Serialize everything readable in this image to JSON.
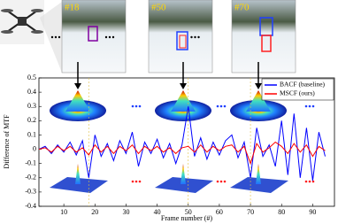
{
  "chart_data": {
    "type": "line",
    "x_label": "Frame number (#)",
    "y_label": "Difference of MTF",
    "frames": [
      {
        "value": 18,
        "label": "#18"
      },
      {
        "value": 50,
        "label": "#50"
      },
      {
        "value": 70,
        "label": "#70"
      }
    ],
    "x": [
      2,
      4,
      6,
      8,
      10,
      12,
      14,
      16,
      18,
      20,
      22,
      24,
      26,
      28,
      30,
      32,
      34,
      36,
      38,
      40,
      42,
      44,
      46,
      48,
      50,
      52,
      54,
      56,
      58,
      60,
      62,
      64,
      66,
      68,
      70,
      72,
      74,
      76,
      78,
      80,
      82,
      84,
      86,
      88,
      90,
      92,
      94
    ],
    "series": [
      {
        "name": "BACF (baseline)",
        "color": "#0000ff",
        "values": [
          0.0,
          0.02,
          -0.03,
          0.03,
          -0.02,
          0.05,
          -0.04,
          0.06,
          -0.2,
          0.1,
          -0.05,
          0.04,
          -0.08,
          0.06,
          -0.03,
          0.12,
          -0.12,
          0.05,
          -0.03,
          0.07,
          -0.06,
          0.04,
          -0.1,
          0.03,
          0.3,
          -0.05,
          0.08,
          -0.07,
          0.05,
          -0.04,
          0.06,
          0.1,
          -0.06,
          0.05,
          -0.2,
          0.15,
          -0.05,
          0.03,
          -0.12,
          0.2,
          -0.18,
          0.25,
          -0.2,
          0.15,
          -0.22,
          0.12,
          -0.05
        ]
      },
      {
        "name": "MSCF (ours)",
        "color": "#ff0000",
        "values": [
          0.0,
          0.01,
          -0.02,
          0.02,
          -0.01,
          0.02,
          -0.02,
          0.01,
          -0.04,
          0.03,
          -0.02,
          0.02,
          -0.03,
          0.02,
          -0.01,
          0.03,
          -0.03,
          0.02,
          -0.01,
          0.02,
          -0.02,
          0.01,
          -0.03,
          0.01,
          0.02,
          -0.02,
          0.03,
          -0.02,
          0.02,
          -0.01,
          0.02,
          0.03,
          -0.02,
          0.02,
          -0.1,
          0.04,
          -0.02,
          0.01,
          0.05,
          0.02,
          -0.03,
          0.04,
          -0.02,
          0.03,
          -0.05,
          0.02,
          -0.01
        ]
      }
    ],
    "xlim": [
      2,
      97
    ],
    "ylim": [
      -0.4,
      0.5
    ],
    "xticks": [
      10,
      20,
      30,
      40,
      50,
      60,
      70,
      80,
      90
    ],
    "yticks": [
      0.5,
      0.4,
      0.3,
      0.2,
      0.1,
      0,
      -0.1,
      -0.2,
      -0.3,
      -0.4
    ],
    "legend": "upper right"
  }
}
